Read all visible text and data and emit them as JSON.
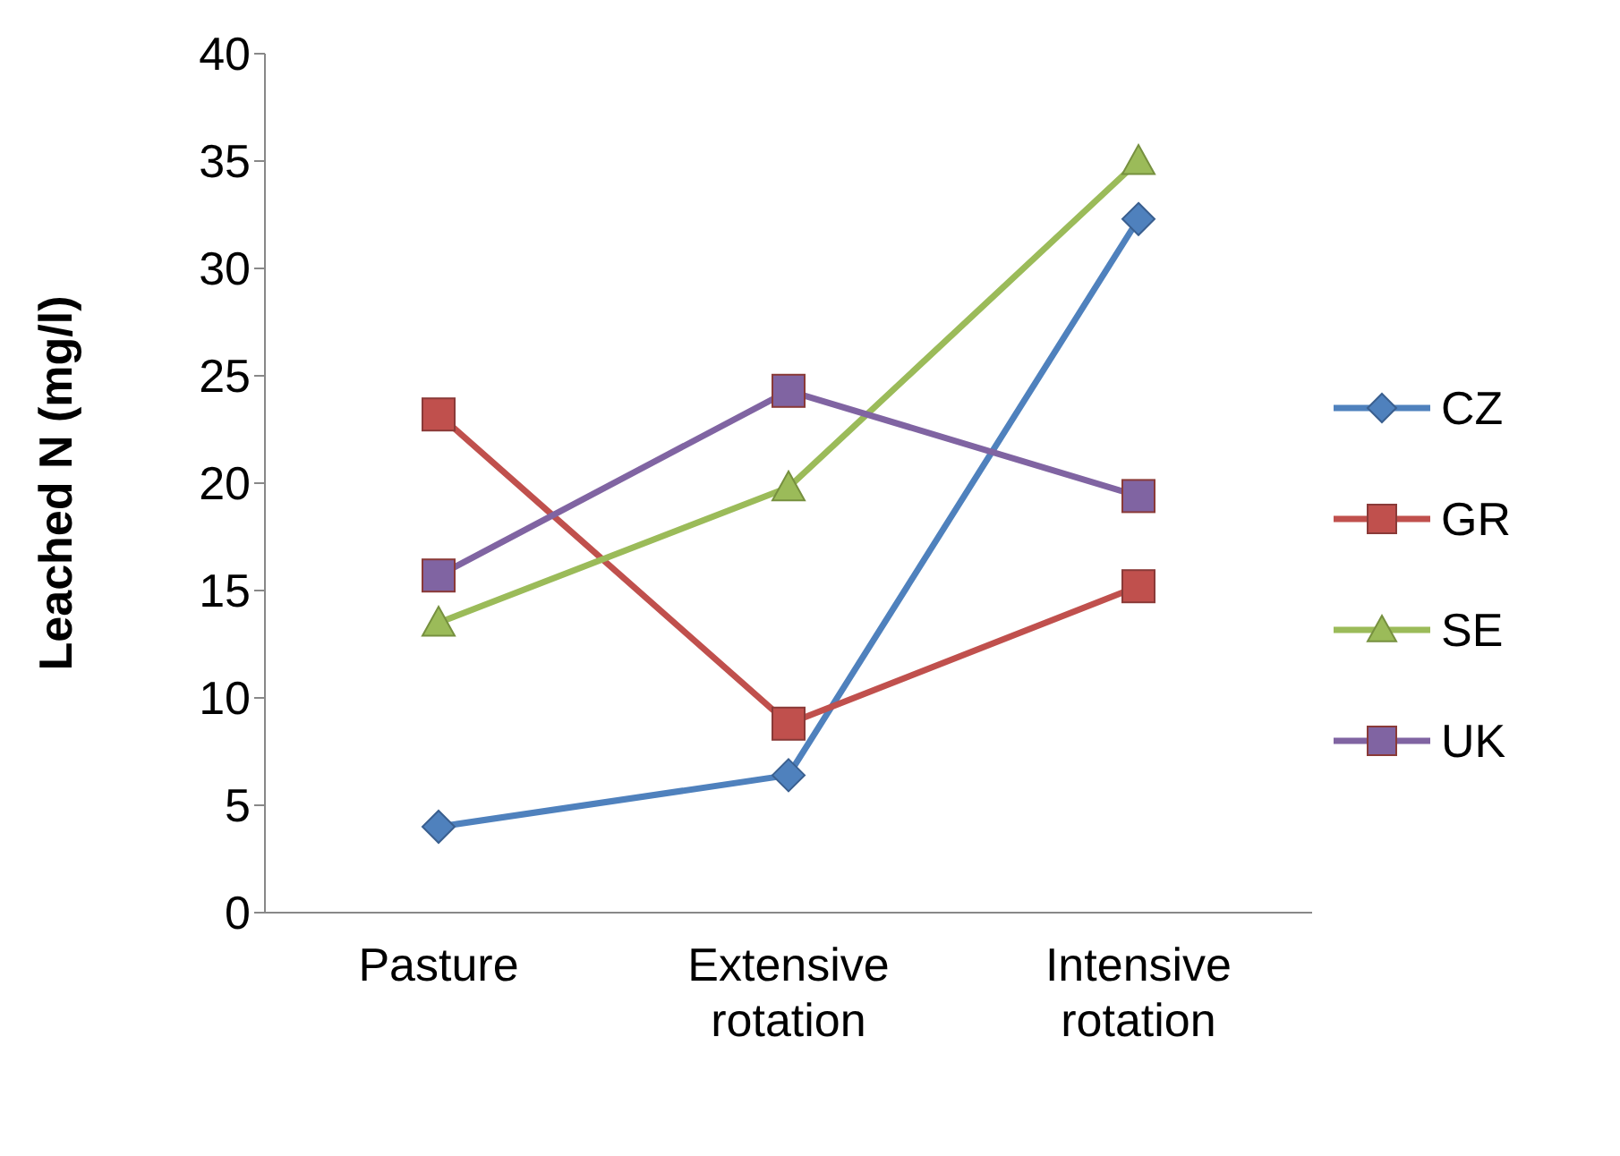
{
  "chart_data": {
    "type": "line",
    "ylabel": "Leached N (mg/l)",
    "categories": [
      "Pasture",
      "Extensive rotation",
      "Intensive rotation"
    ],
    "series": [
      {
        "name": "CZ",
        "color": "#4f81bd",
        "marker": "diamond",
        "values": [
          4.0,
          6.4,
          32.3
        ]
      },
      {
        "name": "GR",
        "color": "#c0504d",
        "marker": "square",
        "values": [
          23.2,
          8.8,
          15.2
        ]
      },
      {
        "name": "SE",
        "color": "#9bbb59",
        "marker": "triangle",
        "values": [
          13.5,
          19.8,
          35.0
        ]
      },
      {
        "name": "UK",
        "color": "#8064a2",
        "marker": "square",
        "values": [
          15.7,
          24.3,
          19.4
        ]
      }
    ],
    "ylim": [
      0,
      40
    ],
    "yticks": [
      0,
      5,
      10,
      15,
      20,
      25,
      30,
      35,
      40
    ],
    "grid": false,
    "legend": "right",
    "line_style": "solid"
  }
}
